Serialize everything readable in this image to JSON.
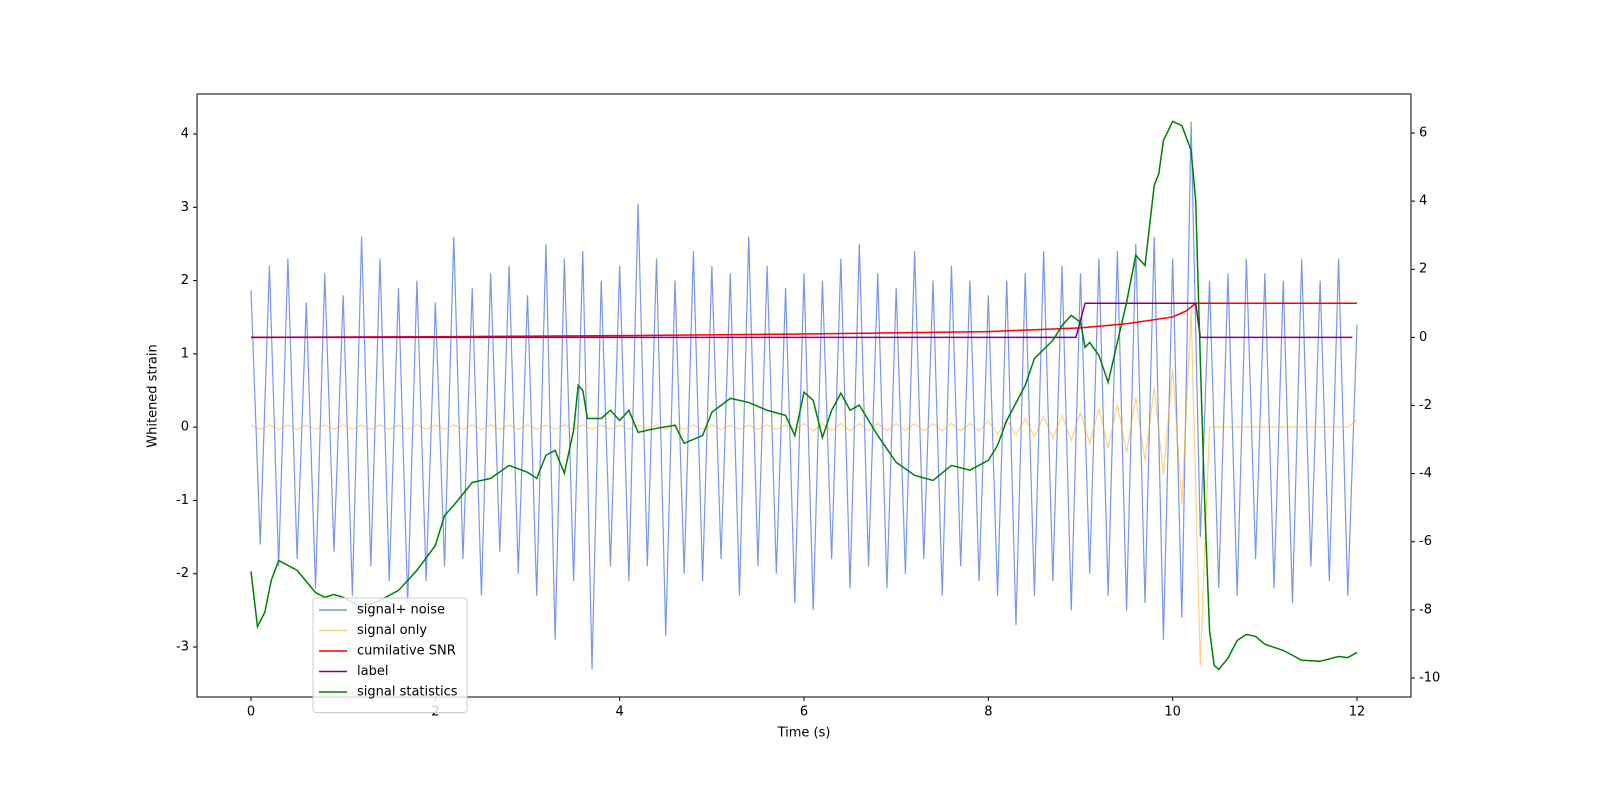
{
  "chart_data": {
    "type": "line",
    "xlabel": "Time (s)",
    "ylabel": "Whitened strain",
    "xlim": [
      -0.586,
      12.586
    ],
    "xticks": [
      0,
      2,
      4,
      6,
      8,
      10,
      12
    ],
    "ylim": [
      -3.682,
      4.546
    ],
    "yticks": [
      -3,
      -2,
      -1,
      0,
      1,
      2,
      3,
      4
    ],
    "y2lim": [
      -10.558,
      7.145
    ],
    "y2ticks": [
      -10,
      -8,
      -6,
      -4,
      -2,
      0,
      2,
      4,
      6
    ],
    "x": [
      0,
      0.1,
      0.2,
      0.3,
      0.4,
      0.5,
      0.6,
      0.7,
      0.8,
      0.9,
      1,
      1.1,
      1.2,
      1.3,
      1.4,
      1.5,
      1.6,
      1.7,
      1.8,
      1.9,
      2,
      2.1,
      2.2,
      2.3,
      2.4,
      2.5,
      2.6,
      2.7,
      2.8,
      2.9,
      3,
      3.1,
      3.2,
      3.3,
      3.4,
      3.5,
      3.6,
      3.7,
      3.8,
      3.9,
      4,
      4.1,
      4.2,
      4.3,
      4.4,
      4.5,
      4.6,
      4.7,
      4.8,
      4.9,
      5,
      5.1,
      5.2,
      5.3,
      5.4,
      5.5,
      5.6,
      5.7,
      5.8,
      5.9,
      6,
      6.1,
      6.2,
      6.3,
      6.4,
      6.5,
      6.6,
      6.7,
      6.8,
      6.9,
      7,
      7.1,
      7.2,
      7.3,
      7.4,
      7.5,
      7.6,
      7.7,
      7.8,
      7.9,
      8,
      8.1,
      8.2,
      8.3,
      8.4,
      8.5,
      8.6,
      8.7,
      8.8,
      8.9,
      9,
      9.1,
      9.2,
      9.3,
      9.4,
      9.5,
      9.6,
      9.7,
      9.8,
      9.9,
      10,
      10.1,
      10.2,
      10.3,
      10.4,
      10.5,
      10.6,
      10.7,
      10.8,
      10.9,
      11,
      11.1,
      11.2,
      11.3,
      11.4,
      11.5,
      11.6,
      11.7,
      11.8,
      11.9,
      12
    ],
    "series": [
      {
        "name": "signal+ noise",
        "color": "#4169e1",
        "opacity": 0.7,
        "values": [
          1.87,
          -1.6,
          2.2,
          -1.9,
          2.3,
          -1.8,
          1.7,
          -2.2,
          2.1,
          -1.7,
          1.8,
          -2.3,
          2.6,
          -1.9,
          2.3,
          -2.1,
          1.9,
          -2.4,
          2.0,
          -2.1,
          1.7,
          -1.9,
          2.6,
          -1.8,
          1.9,
          -2.3,
          2.1,
          -1.7,
          2.2,
          -2.0,
          1.8,
          -2.3,
          2.5,
          -2.9,
          2.3,
          -2.1,
          2.4,
          -3.3,
          2.0,
          -1.9,
          2.2,
          -2.1,
          3.05,
          -1.9,
          2.3,
          -2.85,
          2.0,
          -2.0,
          2.4,
          -2.1,
          2.2,
          -1.8,
          2.1,
          -2.3,
          2.6,
          -1.9,
          2.2,
          -2.0,
          1.9,
          -2.4,
          2.1,
          -2.5,
          2.0,
          -1.8,
          2.3,
          -2.2,
          2.5,
          -1.9,
          2.1,
          -2.2,
          1.9,
          -2.0,
          2.4,
          -1.8,
          2.0,
          -2.3,
          2.2,
          -1.9,
          2.0,
          -2.1,
          1.8,
          -2.3,
          2.0,
          -2.7,
          2.1,
          -2.3,
          2.4,
          -2.1,
          2.2,
          -2.5,
          2.1,
          -2.0,
          2.3,
          -2.3,
          2.4,
          -2.5,
          2.5,
          -2.4,
          2.6,
          -2.9,
          2.3,
          -2.6,
          4.17,
          -1.5,
          2.0,
          -2.2,
          2.1,
          -2.3,
          2.3,
          -1.8,
          2.1,
          -2.2,
          2.0,
          -2.4,
          2.3,
          -1.9,
          2.0,
          -2.1,
          2.3,
          -2.3,
          1.4
        ]
      },
      {
        "name": "signal only",
        "color": "#ffa500",
        "opacity": 0.5,
        "values": [
          0.03,
          -0.03,
          0.03,
          -0.03,
          0.03,
          -0.03,
          0.03,
          -0.03,
          0.03,
          -0.03,
          0.03,
          -0.03,
          0.03,
          -0.03,
          0.03,
          -0.03,
          0.03,
          -0.03,
          0.03,
          -0.03,
          0.03,
          -0.03,
          0.03,
          -0.03,
          0.03,
          -0.03,
          0.03,
          -0.03,
          0.03,
          -0.03,
          0.03,
          -0.03,
          0.03,
          -0.03,
          0.03,
          -0.03,
          0.03,
          -0.03,
          0.03,
          -0.03,
          0.03,
          -0.03,
          0.03,
          -0.03,
          0.03,
          -0.03,
          0.03,
          -0.03,
          0.03,
          -0.03,
          0.03,
          -0.03,
          0.03,
          -0.03,
          0.03,
          -0.03,
          0.03,
          -0.03,
          0.03,
          -0.03,
          0.05,
          -0.05,
          0.05,
          -0.05,
          0.05,
          -0.05,
          0.05,
          -0.05,
          0.05,
          -0.05,
          0.05,
          -0.05,
          0.05,
          -0.05,
          0.05,
          -0.05,
          0.05,
          -0.05,
          0.05,
          -0.05,
          0.08,
          -0.09,
          0.1,
          -0.11,
          0.12,
          -0.13,
          0.14,
          -0.15,
          0.16,
          -0.18,
          0.2,
          -0.22,
          0.25,
          -0.28,
          0.31,
          -0.35,
          0.4,
          -0.46,
          0.54,
          -0.65,
          0.8,
          -1.05,
          1.6,
          -3.25,
          0,
          0,
          0,
          0,
          0,
          0,
          0,
          0,
          0,
          0,
          0,
          0,
          0,
          0,
          0,
          0,
          0.1
        ]
      },
      {
        "name": "cumilative SNR",
        "color": "#ff0000",
        "axis": "y2",
        "x": [
          0,
          2,
          4,
          6,
          8,
          9,
          9.5,
          10,
          10.15,
          10.25,
          12
        ],
        "values": [
          0,
          0.02,
          0.05,
          0.1,
          0.17,
          0.28,
          0.4,
          0.6,
          0.78,
          1.0,
          1.0
        ]
      },
      {
        "name": "label",
        "color": "#800080",
        "axis": "y2",
        "x": [
          0,
          8.95,
          9.05,
          10.25,
          10.3,
          11.95
        ],
        "values": [
          0,
          0,
          1,
          1,
          0,
          0
        ]
      },
      {
        "name": "signal statistics",
        "color": "#008000",
        "axis": "y2",
        "x": [
          0,
          0.07,
          0.15,
          0.22,
          0.3,
          0.5,
          0.7,
          0.8,
          0.9,
          1.0,
          1.2,
          1.4,
          1.6,
          1.8,
          2.0,
          2.1,
          2.2,
          2.4,
          2.6,
          2.8,
          3.0,
          3.1,
          3.2,
          3.3,
          3.4,
          3.5,
          3.55,
          3.6,
          3.65,
          3.8,
          3.9,
          4.0,
          4.1,
          4.2,
          4.4,
          4.6,
          4.7,
          4.9,
          5.0,
          5.2,
          5.4,
          5.6,
          5.8,
          5.9,
          6.0,
          6.1,
          6.2,
          6.3,
          6.4,
          6.5,
          6.6,
          6.8,
          7.0,
          7.2,
          7.4,
          7.6,
          7.8,
          8.0,
          8.1,
          8.2,
          8.4,
          8.5,
          8.7,
          8.8,
          8.9,
          9.0,
          9.05,
          9.1,
          9.2,
          9.3,
          9.5,
          9.6,
          9.7,
          9.8,
          9.85,
          9.9,
          10.0,
          10.1,
          10.2,
          10.25,
          10.3,
          10.35,
          10.4,
          10.45,
          10.5,
          10.6,
          10.7,
          10.8,
          10.9,
          11.0,
          11.2,
          11.4,
          11.6,
          11.8,
          11.9,
          12.0
        ],
        "values": [
          -6.87,
          -8.49,
          -8.07,
          -7.13,
          -6.55,
          -6.84,
          -7.49,
          -7.63,
          -7.55,
          -7.63,
          -7.93,
          -7.72,
          -7.43,
          -6.84,
          -6.11,
          -5.23,
          -4.93,
          -4.26,
          -4.14,
          -3.76,
          -3.96,
          -4.14,
          -3.46,
          -3.32,
          -3.99,
          -2.73,
          -1.41,
          -1.56,
          -2.38,
          -2.38,
          -2.14,
          -2.44,
          -2.14,
          -2.79,
          -2.67,
          -2.58,
          -3.11,
          -2.88,
          -2.2,
          -1.79,
          -1.91,
          -2.14,
          -2.29,
          -2.88,
          -1.61,
          -1.85,
          -2.94,
          -2.14,
          -1.64,
          -2.14,
          -1.99,
          -2.88,
          -3.67,
          -4.05,
          -4.2,
          -3.76,
          -3.9,
          -3.61,
          -3.17,
          -2.44,
          -1.41,
          -0.62,
          -0.09,
          0.35,
          0.65,
          0.44,
          -0.29,
          -0.15,
          -0.53,
          -1.32,
          1.03,
          2.41,
          2.11,
          4.46,
          4.81,
          5.78,
          6.34,
          6.22,
          5.49,
          4.02,
          -0.68,
          -5.08,
          -8.6,
          -9.63,
          -9.75,
          -9.42,
          -8.9,
          -8.72,
          -8.78,
          -9.01,
          -9.19,
          -9.48,
          -9.51,
          -9.37,
          -9.4,
          -9.25
        ]
      }
    ]
  }
}
